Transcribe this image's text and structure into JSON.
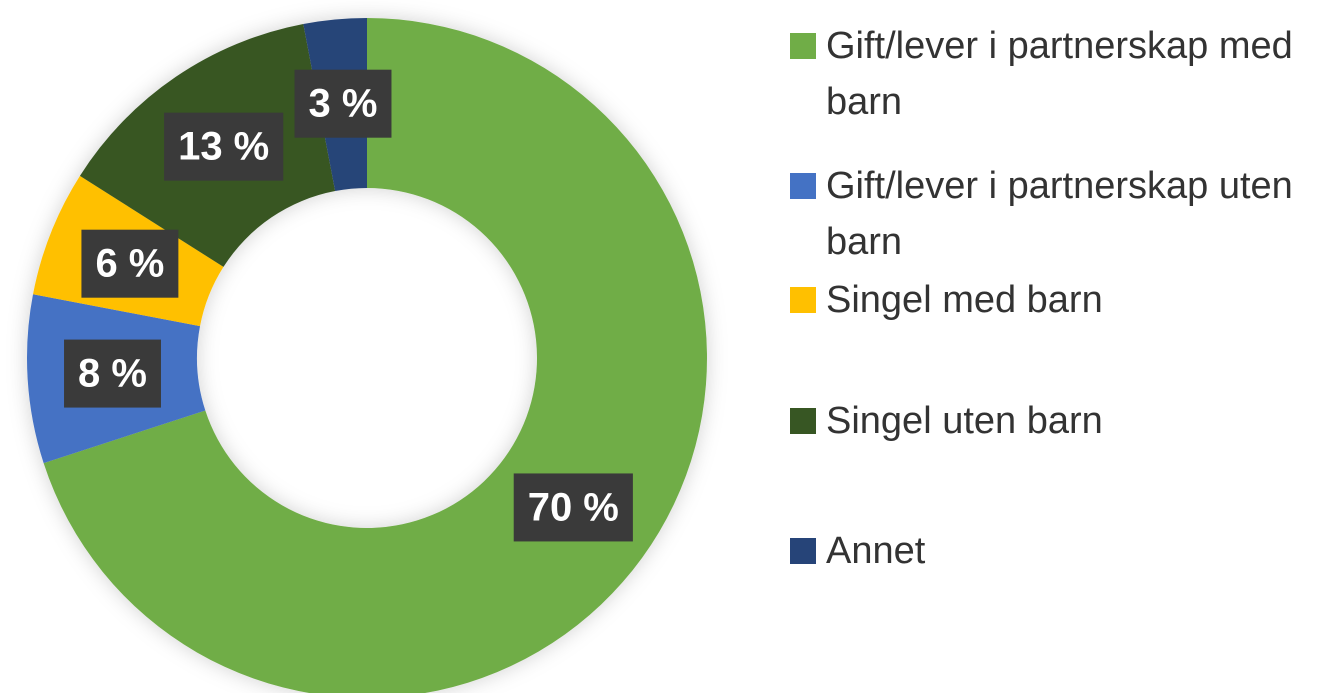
{
  "chart_data": {
    "type": "pie",
    "donut": true,
    "categories": [
      "Gift/lever i partnerskap med barn",
      "Gift/lever i partnerskap uten barn",
      "Singel med barn",
      "Singel uten barn",
      "Annet"
    ],
    "values": [
      70,
      8,
      6,
      13,
      3
    ],
    "value_labels": [
      "70 %",
      "8 %",
      "6 %",
      "13 %",
      "3 %"
    ],
    "colors": [
      "#70ad47",
      "#4472c4",
      "#ffc000",
      "#375623",
      "#264478"
    ],
    "legend": "right"
  }
}
